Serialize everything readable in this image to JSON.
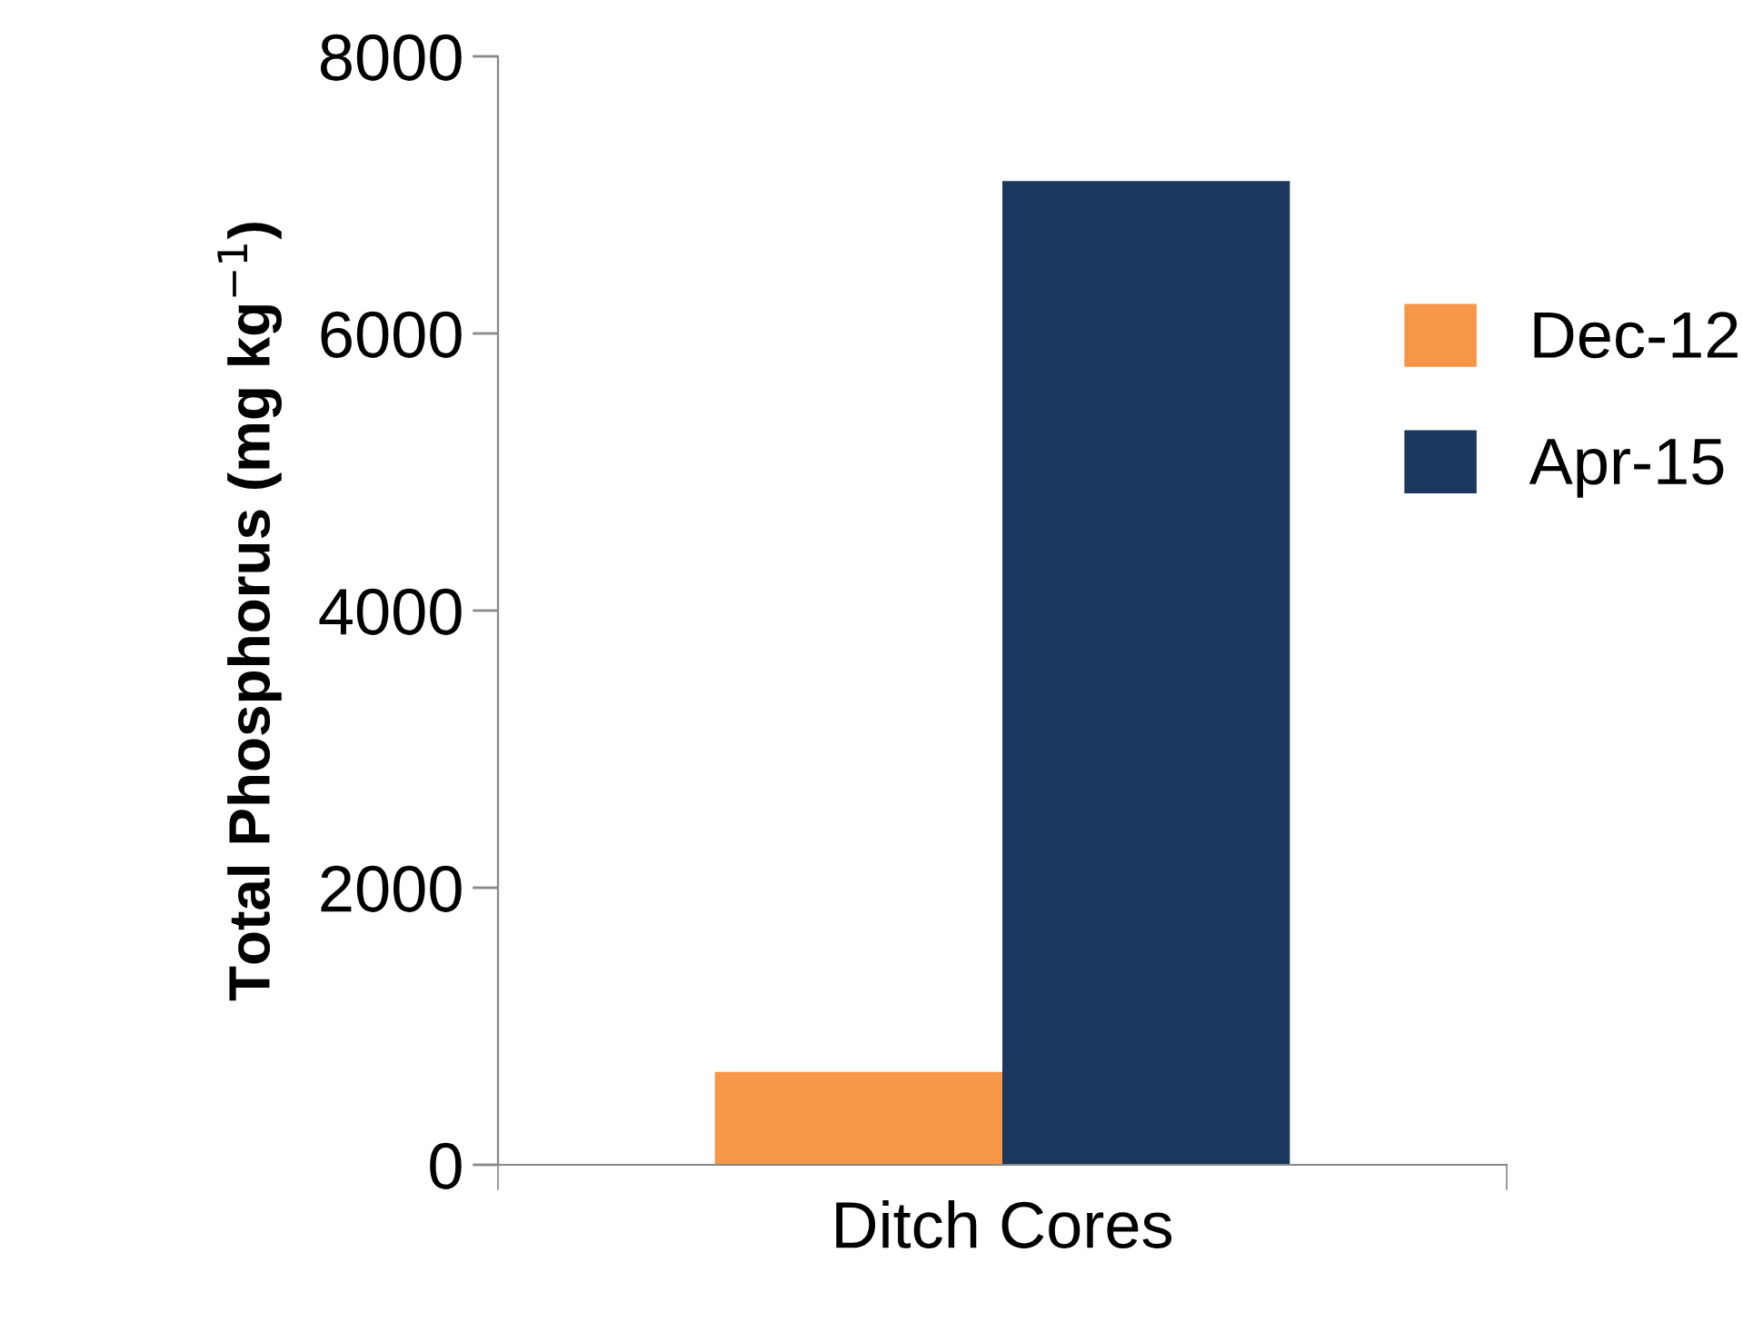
{
  "chart_data": {
    "type": "bar",
    "ylabel": "Total Phosphorus (mg kg$^{−1}$)",
    "categories": [
      "Ditch Cores"
    ],
    "series": [
      {
        "name": "Dec-12",
        "color": "#f79646",
        "values": [
          670
        ]
      },
      {
        "name": "Apr-15",
        "color": "#1b375d",
        "values": [
          7100
        ]
      }
    ],
    "ylim": [
      0,
      8000
    ],
    "yticks": [
      0,
      2000,
      4000,
      6000,
      8000
    ],
    "grid": false,
    "legend": "right"
  }
}
